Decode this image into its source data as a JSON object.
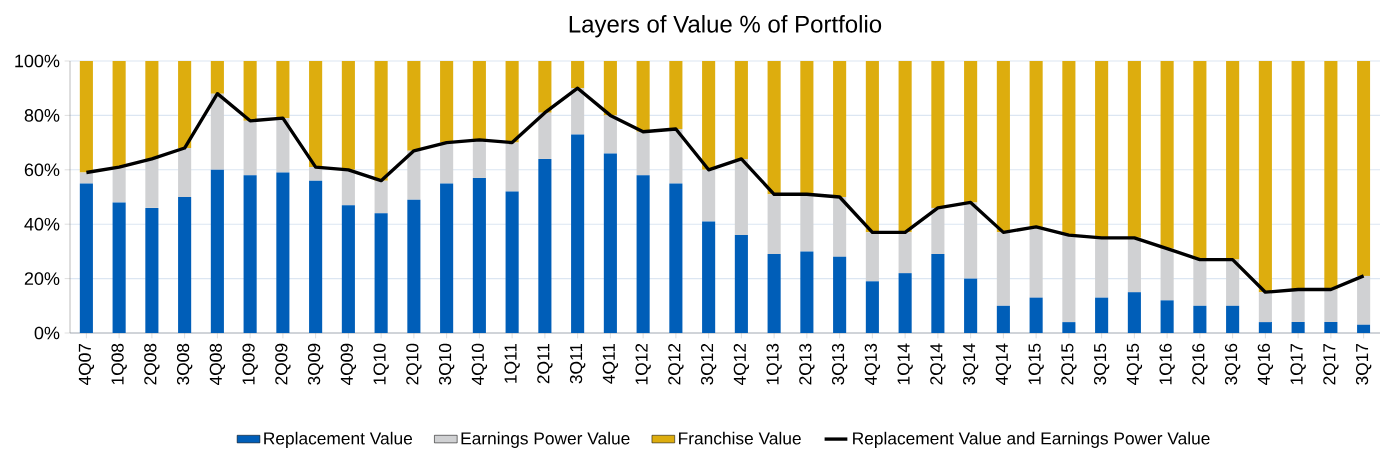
{
  "chart_data": {
    "type": "bar",
    "title": "Layers of Value % of Portfolio",
    "stacked": true,
    "grid": "y",
    "legend": "bottom",
    "categories": [
      "4Q07",
      "1Q08",
      "2Q08",
      "3Q08",
      "4Q08",
      "1Q09",
      "2Q09",
      "3Q09",
      "4Q09",
      "1Q10",
      "2Q10",
      "3Q10",
      "4Q10",
      "1Q11",
      "2Q11",
      "3Q11",
      "4Q11",
      "1Q12",
      "2Q12",
      "3Q12",
      "4Q12",
      "1Q13",
      "2Q13",
      "3Q13",
      "4Q13",
      "1Q14",
      "2Q14",
      "3Q14",
      "4Q14",
      "1Q15",
      "2Q15",
      "3Q15",
      "4Q15",
      "1Q16",
      "2Q16",
      "3Q16",
      "4Q16",
      "1Q17",
      "2Q17",
      "3Q17"
    ],
    "ylim": [
      0,
      100
    ],
    "yticks": [
      {
        "value": 0,
        "label": "0%"
      },
      {
        "value": 20,
        "label": "20%"
      },
      {
        "value": 40,
        "label": "40%"
      },
      {
        "value": 60,
        "label": "60%"
      },
      {
        "value": 80,
        "label": "80%"
      },
      {
        "value": 100,
        "label": "100%"
      }
    ],
    "series": [
      {
        "name": "Replacement Value",
        "color": "#005eb8",
        "values": [
          55,
          48,
          46,
          50,
          60,
          58,
          59,
          56,
          47,
          44,
          49,
          55,
          57,
          52,
          64,
          73,
          66,
          58,
          55,
          41,
          36,
          29,
          30,
          28,
          19,
          22,
          29,
          20,
          10,
          13,
          4,
          13,
          15,
          12,
          10,
          10,
          4,
          4,
          4,
          3
        ]
      },
      {
        "name": "Earnings Power Value",
        "color": "#d0d1d3",
        "values": [
          4,
          13,
          18,
          18,
          28,
          20,
          20,
          5,
          13,
          12,
          18,
          15,
          14,
          18,
          17,
          17,
          14,
          16,
          20,
          19,
          28,
          22,
          21,
          22,
          18,
          15,
          17,
          28,
          27,
          26,
          32,
          22,
          20,
          19,
          17,
          17,
          11,
          12,
          12,
          18
        ]
      },
      {
        "name": "Franchise Value",
        "color": "#ddad0e",
        "values": [
          41,
          39,
          36,
          32,
          12,
          22,
          21,
          39,
          40,
          44,
          33,
          30,
          29,
          30,
          19,
          10,
          20,
          26,
          25,
          40,
          36,
          49,
          49,
          50,
          63,
          63,
          54,
          52,
          63,
          61,
          64,
          65,
          65,
          69,
          73,
          73,
          85,
          84,
          84,
          79
        ]
      },
      {
        "name": "Replacement Value and Earnings Power Value",
        "type": "line",
        "color": "#000000",
        "values": [
          59,
          61,
          64,
          68,
          88,
          78,
          79,
          61,
          60,
          56,
          67,
          70,
          71,
          70,
          81,
          90,
          80,
          74,
          75,
          60,
          64,
          51,
          51,
          50,
          37,
          37,
          46,
          48,
          37,
          39,
          36,
          35,
          35,
          31,
          27,
          27,
          15,
          16,
          16,
          21
        ]
      }
    ]
  }
}
